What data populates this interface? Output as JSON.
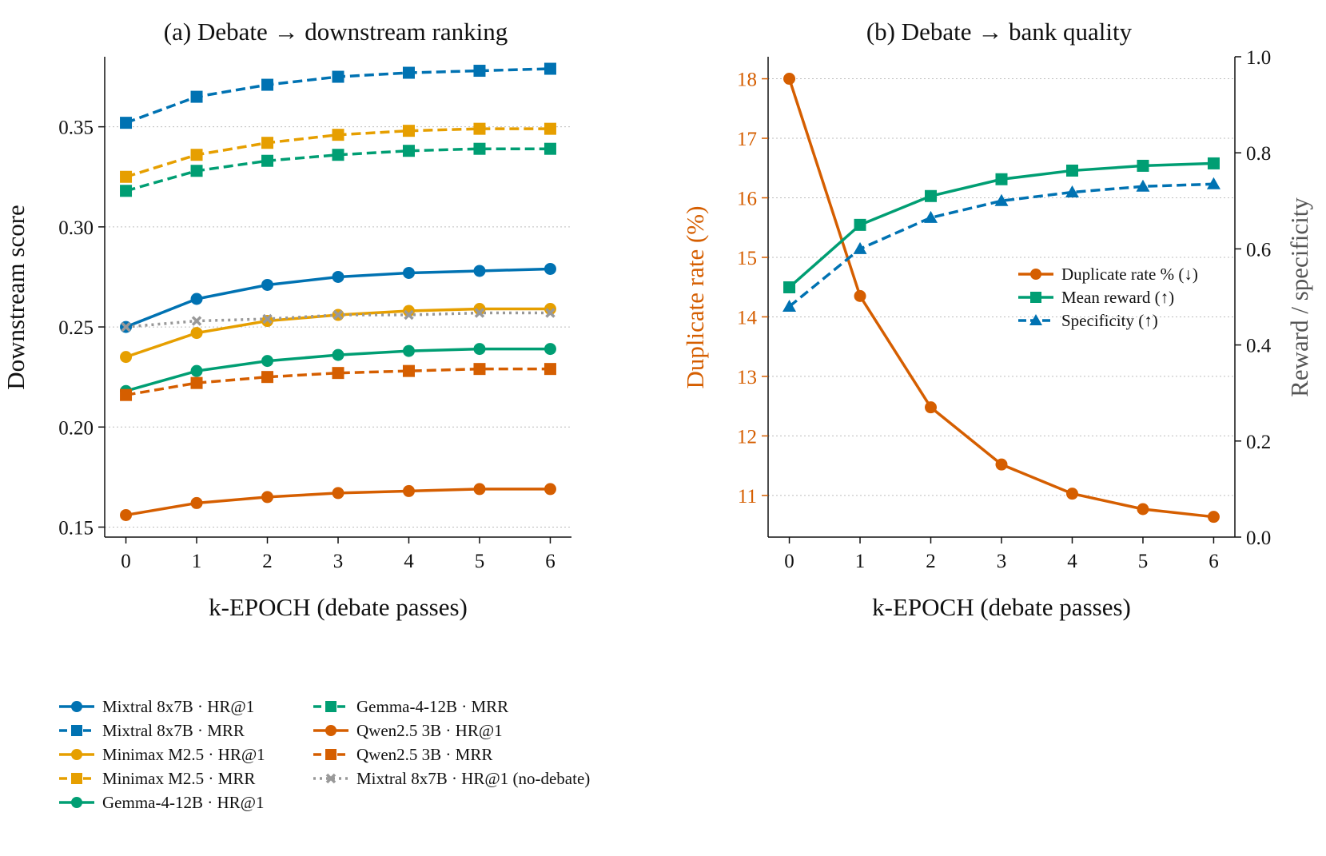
{
  "chart_data": [
    {
      "type": "line",
      "title": "(a) Debate → downstream ranking",
      "xlabel": "k-EPOCH (debate passes)",
      "ylabel": "Downstream score",
      "x": [
        0,
        1,
        2,
        3,
        4,
        5,
        6
      ],
      "xticks": [
        "0",
        "1",
        "2",
        "3",
        "4",
        "5",
        "6"
      ],
      "xlim": [
        -0.3,
        6.3
      ],
      "ylim": [
        0.145,
        0.385
      ],
      "yticks": [
        "0.15",
        "0.20",
        "0.25",
        "0.30",
        "0.35"
      ],
      "ytick_values": [
        0.15,
        0.2,
        0.25,
        0.3,
        0.35
      ],
      "grid": "horizontal dotted",
      "legend_position": "below",
      "series": [
        {
          "name": "Mixtral 8x7B · HR@1",
          "color": "#0072B2",
          "dash": "solid",
          "marker": "circle",
          "values": [
            0.25,
            0.264,
            0.271,
            0.275,
            0.277,
            0.278,
            0.279
          ]
        },
        {
          "name": "Mixtral 8x7B · MRR",
          "color": "#0072B2",
          "dash": "dashed",
          "marker": "square",
          "values": [
            0.352,
            0.365,
            0.371,
            0.375,
            0.377,
            0.378,
            0.379
          ]
        },
        {
          "name": "Minimax M2.5 · HR@1",
          "color": "#E69F00",
          "dash": "solid",
          "marker": "circle",
          "values": [
            0.235,
            0.247,
            0.253,
            0.256,
            0.258,
            0.259,
            0.259
          ]
        },
        {
          "name": "Minimax M2.5 · MRR",
          "color": "#E69F00",
          "dash": "dashed",
          "marker": "square",
          "values": [
            0.325,
            0.336,
            0.342,
            0.346,
            0.348,
            0.349,
            0.349
          ]
        },
        {
          "name": "Gemma-4-12B · HR@1",
          "color": "#009E73",
          "dash": "solid",
          "marker": "circle",
          "values": [
            0.218,
            0.228,
            0.233,
            0.236,
            0.238,
            0.239,
            0.239
          ]
        },
        {
          "name": "Gemma-4-12B · MRR",
          "color": "#009E73",
          "dash": "dashed",
          "marker": "square",
          "values": [
            0.318,
            0.328,
            0.333,
            0.336,
            0.338,
            0.339,
            0.339
          ]
        },
        {
          "name": "Qwen2.5 3B · HR@1",
          "color": "#D55E00",
          "dash": "solid",
          "marker": "circle",
          "values": [
            0.156,
            0.162,
            0.165,
            0.167,
            0.168,
            0.169,
            0.169
          ]
        },
        {
          "name": "Qwen2.5 3B · MRR",
          "color": "#D55E00",
          "dash": "dashed",
          "marker": "square",
          "values": [
            0.216,
            0.222,
            0.225,
            0.227,
            0.228,
            0.229,
            0.229
          ]
        },
        {
          "name": "Mixtral 8x7B · HR@1 (no-debate)",
          "color": "#999999",
          "dash": "dotted",
          "marker": "x",
          "values": [
            0.25,
            0.253,
            0.254,
            0.256,
            0.256,
            0.257,
            0.257
          ]
        }
      ]
    },
    {
      "type": "line",
      "title": "(b) Debate → bank quality",
      "xlabel": "k-EPOCH (debate passes)",
      "ylabel_left": "Duplicate rate (%)",
      "ylabel_right": "Reward / specificity",
      "x": [
        0,
        1,
        2,
        3,
        4,
        5,
        6
      ],
      "xticks": [
        "0",
        "1",
        "2",
        "3",
        "4",
        "5",
        "6"
      ],
      "xlim": [
        -0.3,
        6.3
      ],
      "ylim_left": [
        10.3,
        18.37
      ],
      "yticks_left": [
        "11",
        "12",
        "13",
        "14",
        "15",
        "16",
        "17",
        "18"
      ],
      "ytick_values_left": [
        11,
        12,
        13,
        14,
        15,
        16,
        17,
        18
      ],
      "ylim_right": [
        0.0,
        1.0
      ],
      "yticks_right": [
        "0.0",
        "0.2",
        "0.4",
        "0.6",
        "0.8",
        "1.0"
      ],
      "ytick_values_right": [
        0.0,
        0.2,
        0.4,
        0.6,
        0.8,
        1.0
      ],
      "left_axis_color": "#D55E00",
      "right_axis_color": "#555555",
      "grid": "horizontal dotted",
      "legend_position": "center-right",
      "series": [
        {
          "name": "Duplicate rate % (↓)",
          "axis": "left",
          "color": "#D55E00",
          "dash": "solid",
          "marker": "circle",
          "values": [
            18.0,
            14.35,
            12.48,
            11.52,
            11.03,
            10.77,
            10.64
          ]
        },
        {
          "name": "Mean reward (↑)",
          "axis": "right",
          "color": "#009E73",
          "dash": "solid",
          "marker": "square",
          "values": [
            0.52,
            0.65,
            0.71,
            0.745,
            0.763,
            0.773,
            0.778
          ]
        },
        {
          "name": "Specificity (↑)",
          "axis": "right",
          "color": "#0072B2",
          "dash": "dashed",
          "marker": "triangle",
          "values": [
            0.48,
            0.6,
            0.665,
            0.7,
            0.718,
            0.73,
            0.735
          ]
        }
      ]
    }
  ]
}
